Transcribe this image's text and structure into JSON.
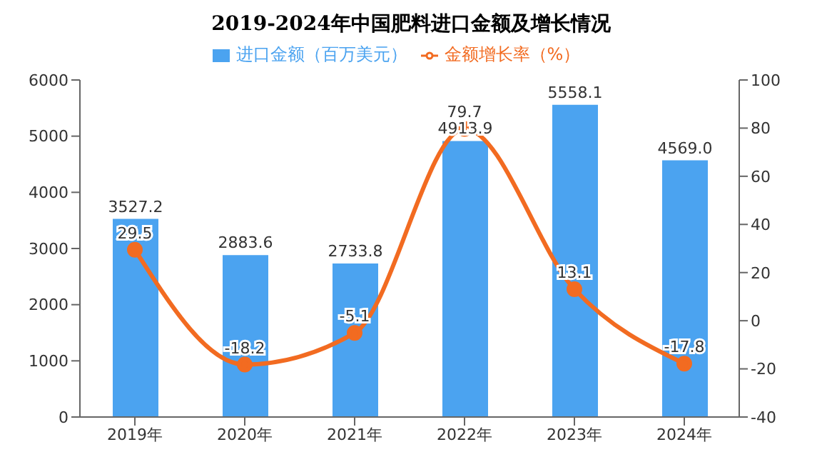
{
  "chart_data": {
    "type": "bar",
    "title": "2019-2024年中国肥料进口金额及增长情况",
    "categories": [
      "2019年",
      "2020年",
      "2021年",
      "2022年",
      "2023年",
      "2024年"
    ],
    "series": [
      {
        "name": "进口金额（百万美元）",
        "color": "#4ba3f0",
        "values": [
          3527.2,
          2883.6,
          2733.8,
          4913.9,
          5558.1,
          4569
        ],
        "value_labels": [
          "3527.2",
          "2883.6",
          "2733.8",
          "4913.9",
          "5558.1",
          "4569.0"
        ]
      },
      {
        "name": "金额增长率（%）",
        "type": "line",
        "axis": "y2",
        "color": "#f26b21",
        "marker": "circle",
        "values": [
          29.5,
          -18.2,
          -5.1,
          79.7,
          13.1,
          -17.8
        ]
      }
    ],
    "ylim": [
      0,
      6000
    ],
    "yticks": [
      0,
      1000,
      2000,
      3000,
      4000,
      5000,
      6000
    ],
    "y2lim": [
      -40,
      100
    ],
    "y2ticks": [
      -40,
      -20,
      0,
      20,
      40,
      60,
      80,
      100
    ],
    "legend": "top",
    "grid": false,
    "data_labels": true
  }
}
